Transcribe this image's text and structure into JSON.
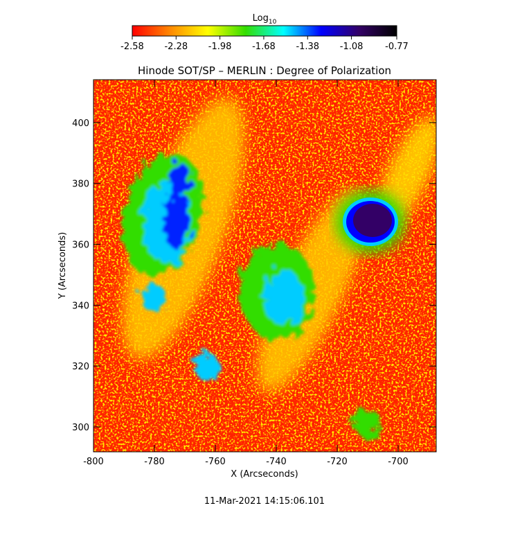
{
  "chart_data": {
    "type": "heatmap",
    "title": "Hinode SOT/SP – MERLIN : Degree of Polarization",
    "x_label": "X (Arcseconds)",
    "y_label": "Y (Arcseconds)",
    "xlim": [
      -800,
      -687.5
    ],
    "xticks": [
      -800,
      -780,
      -760,
      -740,
      -720,
      -700
    ],
    "ylim": [
      291.8,
      414.1
    ],
    "yticks": [
      300,
      320,
      340,
      360,
      380,
      400
    ],
    "colorbar": {
      "label": "Log",
      "label_subscript": "10",
      "clim": [
        -2.58,
        -0.77
      ],
      "ticks": [
        -2.58,
        -2.28,
        -1.98,
        -1.68,
        -1.38,
        -1.08,
        -0.77
      ],
      "colors": [
        "#ff0000",
        "#ff8800",
        "#ffff00",
        "#33dd00",
        "#00ffff",
        "#0000ff",
        "#330066",
        "#000000"
      ]
    },
    "footer": "11-Mar-2021 14:15:06.101"
  }
}
